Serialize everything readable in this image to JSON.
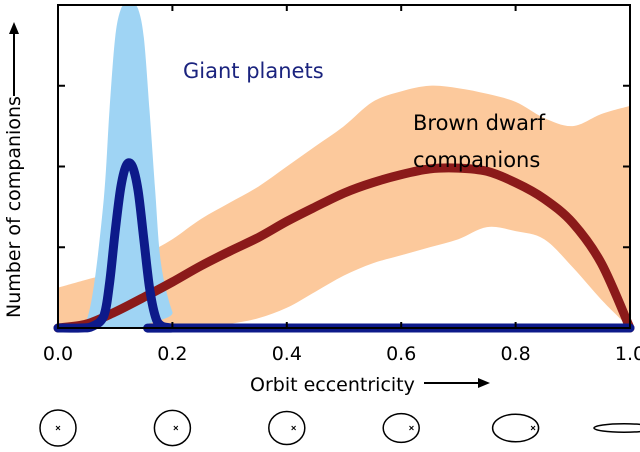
{
  "chart_data": {
    "type": "area",
    "title": "",
    "xlabel": "Orbit eccentricity",
    "ylabel": "Number of companions",
    "xlim": [
      0.0,
      1.0
    ],
    "ylim": [
      0,
      4
    ],
    "x_ticks": [
      "0.0",
      "0.2",
      "0.4",
      "0.6",
      "0.8",
      "1.0"
    ],
    "y_ticks_unlabeled": [
      1,
      2,
      3
    ],
    "grid": false,
    "annotations": {
      "giant": "Giant planets",
      "bd_line1": "Brown dwarf",
      "bd_line2": "companions"
    },
    "series": [
      {
        "name": "Giant planets",
        "color": "#0d1a8a",
        "band_color": "#9fd4f4",
        "x": [
          0.0,
          0.04,
          0.06,
          0.08,
          0.09,
          0.1,
          0.11,
          0.12,
          0.13,
          0.14,
          0.15,
          0.16,
          0.17,
          0.18,
          0.2,
          0.22,
          1.0
        ],
        "values": [
          0,
          0,
          0.02,
          0.15,
          0.55,
          1.2,
          1.75,
          2.02,
          2.0,
          1.7,
          1.1,
          0.5,
          0.15,
          0.03,
          0,
          0,
          0
        ],
        "band_upper": [
          0,
          0,
          0.4,
          1.6,
          2.7,
          3.6,
          3.95,
          4.0,
          4.0,
          3.95,
          3.6,
          2.7,
          1.7,
          0.8,
          0.2,
          0,
          0
        ],
        "band_lower": [
          0,
          0,
          0,
          0,
          0,
          0,
          0,
          0,
          0,
          0,
          0,
          0,
          0,
          0,
          0,
          0,
          0
        ]
      },
      {
        "name": "Brown dwarf companions",
        "color": "#8b1a1a",
        "band_color": "#fcc99c",
        "x": [
          0.0,
          0.05,
          0.1,
          0.15,
          0.2,
          0.25,
          0.3,
          0.35,
          0.4,
          0.45,
          0.5,
          0.55,
          0.6,
          0.65,
          0.7,
          0.75,
          0.8,
          0.85,
          0.9,
          0.95,
          1.0
        ],
        "values": [
          0,
          0.05,
          0.2,
          0.38,
          0.57,
          0.77,
          0.95,
          1.12,
          1.32,
          1.5,
          1.67,
          1.8,
          1.9,
          1.97,
          1.98,
          1.94,
          1.8,
          1.6,
          1.3,
          0.8,
          0
        ],
        "band_upper": [
          0.5,
          0.6,
          0.7,
          0.9,
          1.1,
          1.35,
          1.55,
          1.75,
          2.0,
          2.25,
          2.5,
          2.8,
          2.93,
          3.0,
          2.97,
          2.9,
          2.8,
          2.6,
          2.5,
          2.65,
          2.75
        ],
        "band_lower": [
          0,
          0,
          0,
          0,
          0,
          0,
          0.05,
          0.12,
          0.25,
          0.45,
          0.65,
          0.8,
          0.9,
          1.0,
          1.1,
          1.25,
          1.2,
          1.1,
          0.75,
          0.35,
          0
        ]
      }
    ],
    "orbit_examples_eccentricity": [
      0.0,
      0.2,
      0.4,
      0.6,
      0.8,
      1.0
    ]
  }
}
